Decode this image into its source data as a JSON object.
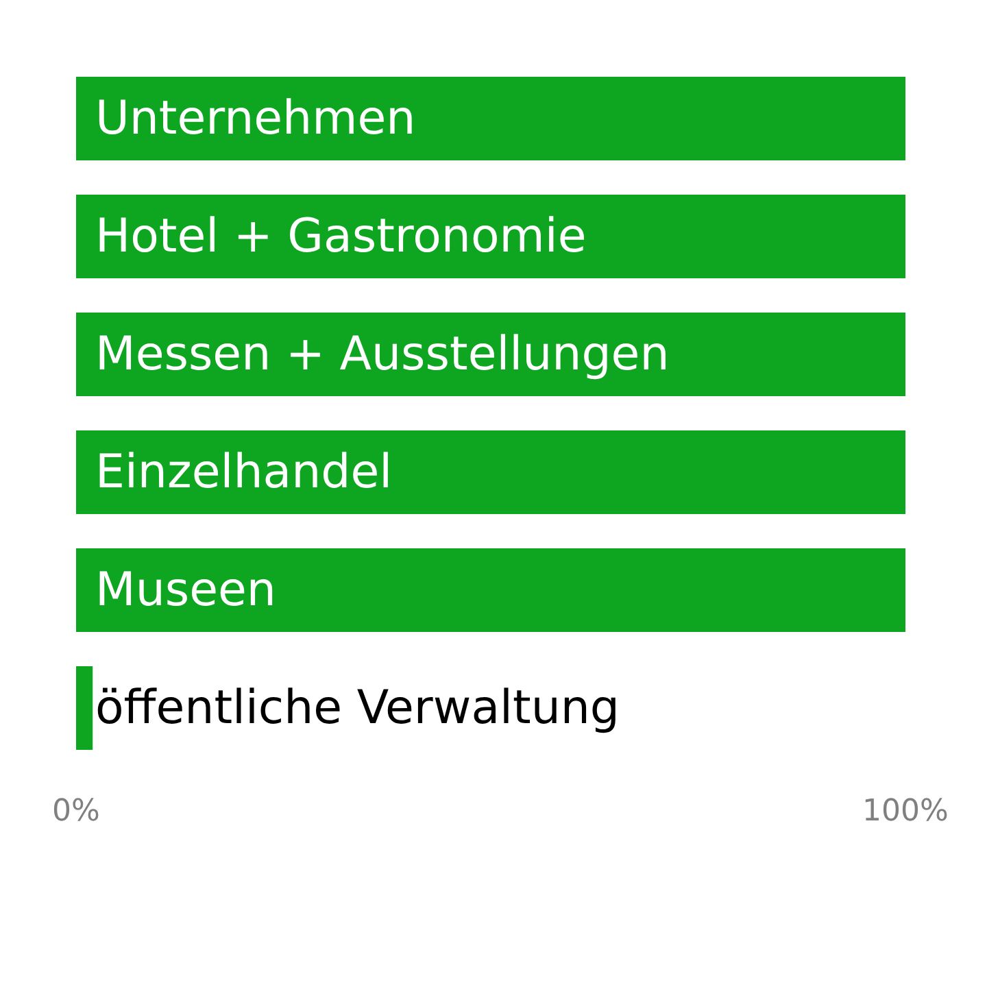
{
  "chart_data": {
    "type": "bar",
    "orientation": "horizontal",
    "categories": [
      "Unternehmen",
      "Hotel + Gastronomie",
      "Messen + Ausstellungen",
      "Einzelhandel",
      "Museen",
      "öffentliche Verwaltung"
    ],
    "values": [
      100,
      100,
      100,
      100,
      100,
      2
    ],
    "color": "#0ea521",
    "xlim": [
      0,
      100
    ],
    "xticks": [
      {
        "value": 0,
        "label": "0%"
      },
      {
        "value": 100,
        "label": "100%"
      }
    ],
    "grid": false
  }
}
